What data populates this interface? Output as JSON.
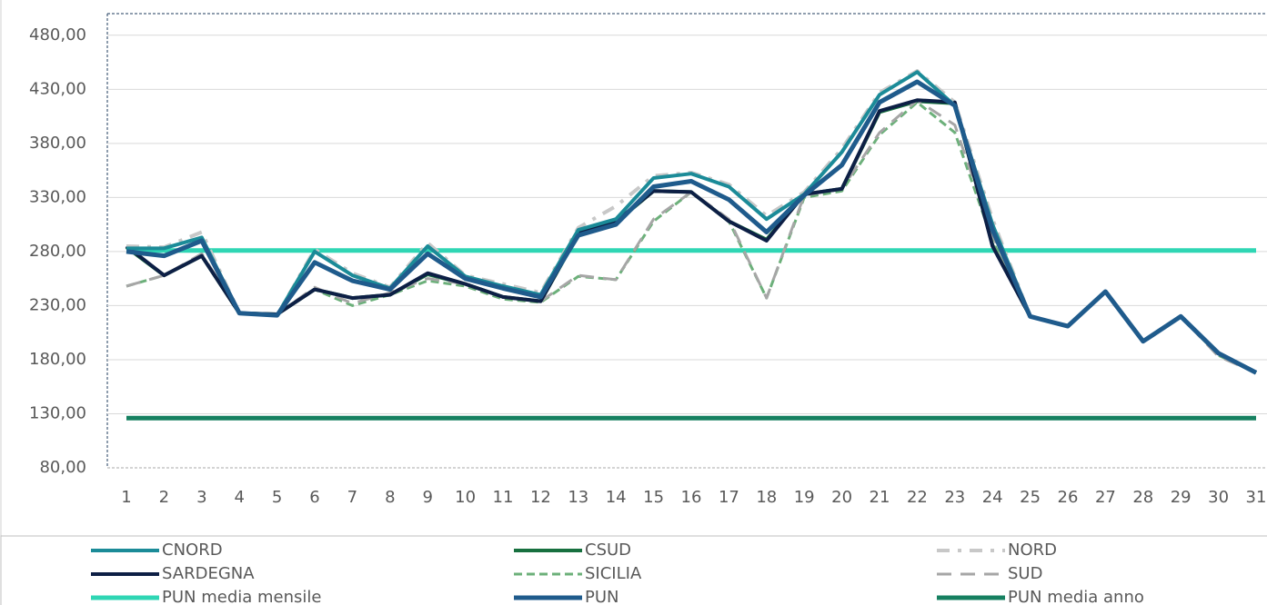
{
  "chart_data": {
    "type": "line",
    "categories": [
      "1",
      "2",
      "3",
      "4",
      "5",
      "6",
      "7",
      "8",
      "9",
      "10",
      "11",
      "12",
      "13",
      "14",
      "15",
      "16",
      "17",
      "18",
      "19",
      "20",
      "21",
      "22",
      "23",
      "24",
      "25",
      "26",
      "27",
      "28",
      "29",
      "30",
      "31"
    ],
    "ylim": [
      80,
      500
    ],
    "yticks": [
      {
        "value": 80,
        "label": "80,00"
      },
      {
        "value": 130,
        "label": "130,00"
      },
      {
        "value": 180,
        "label": "180,00"
      },
      {
        "value": 230,
        "label": "230,00"
      },
      {
        "value": 280,
        "label": "280,00"
      },
      {
        "value": 330,
        "label": "330,00"
      },
      {
        "value": 380,
        "label": "380,00"
      },
      {
        "value": 430,
        "label": "430,00"
      },
      {
        "value": 480,
        "label": "480,00"
      }
    ],
    "grid": true,
    "legend": "bottom",
    "series": [
      {
        "name": "PUN media mensile",
        "color": "#2fd6b4",
        "width": 5,
        "dash": "solid",
        "values": [
          281,
          281,
          281,
          281,
          281,
          281,
          281,
          281,
          281,
          281,
          281,
          281,
          281,
          281,
          281,
          281,
          281,
          281,
          281,
          281,
          281,
          281,
          281,
          281,
          281,
          281,
          281,
          281,
          281,
          281,
          281
        ]
      },
      {
        "name": "PUN media anno",
        "color": "#168060",
        "width": 5,
        "dash": "solid",
        "values": [
          126,
          126,
          126,
          126,
          126,
          126,
          126,
          126,
          126,
          126,
          126,
          126,
          126,
          126,
          126,
          126,
          126,
          126,
          126,
          126,
          126,
          126,
          126,
          126,
          126,
          126,
          126,
          126,
          126,
          126,
          126
        ]
      },
      {
        "name": "CSUD",
        "color": "#17703f",
        "width": 4,
        "dash": "solid",
        "values": [
          284,
          258,
          276,
          223,
          222,
          245,
          237,
          240,
          259,
          250,
          238,
          234,
          296,
          307,
          336,
          335,
          308,
          291,
          333,
          338,
          409,
          419,
          417,
          286,
          220,
          211,
          243,
          197,
          220,
          186,
          168
        ]
      },
      {
        "name": "SICILIA",
        "color": "#6cb07a",
        "width": 3,
        "dash": "short",
        "values": [
          248,
          258,
          276,
          223,
          222,
          245,
          230,
          240,
          253,
          248,
          236,
          233,
          257,
          254,
          308,
          335,
          308,
          237,
          330,
          336,
          388,
          418,
          390,
          290,
          220,
          211,
          243,
          197,
          220,
          184,
          168
        ]
      },
      {
        "name": "SUD",
        "color": "#a6a6a6",
        "width": 3,
        "dash": "long",
        "values": [
          248,
          258,
          278,
          223,
          222,
          247,
          232,
          242,
          255,
          250,
          238,
          234,
          258,
          254,
          310,
          335,
          310,
          237,
          332,
          338,
          390,
          420,
          397,
          295,
          220,
          211,
          243,
          197,
          220,
          183,
          168
        ]
      },
      {
        "name": "SARDEGNA",
        "color": "#0d1f45",
        "width": 4,
        "dash": "solid",
        "values": [
          285,
          258,
          276,
          223,
          222,
          245,
          237,
          240,
          260,
          250,
          238,
          234,
          297,
          308,
          336,
          335,
          308,
          290,
          333,
          338,
          410,
          420,
          418,
          285,
          220,
          211,
          243,
          197,
          220,
          186,
          168
        ]
      },
      {
        "name": "NORD",
        "color": "#c8c8c8",
        "width": 4,
        "dash": "dashdot",
        "values": [
          285,
          284,
          298,
          223,
          221,
          282,
          260,
          247,
          288,
          258,
          250,
          242,
          302,
          322,
          350,
          353,
          342,
          313,
          335,
          375,
          427,
          447,
          418,
          310,
          220,
          211,
          243,
          197,
          220,
          186,
          168
        ]
      },
      {
        "name": "CNORD",
        "color": "#1b8b98",
        "width": 4,
        "dash": "solid",
        "values": [
          283,
          283,
          293,
          223,
          221,
          280,
          258,
          246,
          285,
          257,
          248,
          240,
          300,
          310,
          348,
          352,
          340,
          310,
          333,
          372,
          425,
          446,
          415,
          305,
          220,
          211,
          243,
          197,
          220,
          186,
          168
        ]
      },
      {
        "name": "PUN",
        "color": "#1f5b8c",
        "width": 5,
        "dash": "solid",
        "values": [
          280,
          276,
          290,
          223,
          221,
          270,
          253,
          245,
          278,
          255,
          246,
          238,
          295,
          305,
          340,
          345,
          328,
          298,
          332,
          360,
          418,
          437,
          415,
          300,
          220,
          211,
          243,
          197,
          220,
          186,
          168
        ]
      }
    ],
    "legend_order": [
      "CNORD",
      "CSUD",
      "NORD",
      "SARDEGNA",
      "SICILIA",
      "SUD",
      "PUN media mensile",
      "PUN",
      "PUN media anno"
    ]
  }
}
